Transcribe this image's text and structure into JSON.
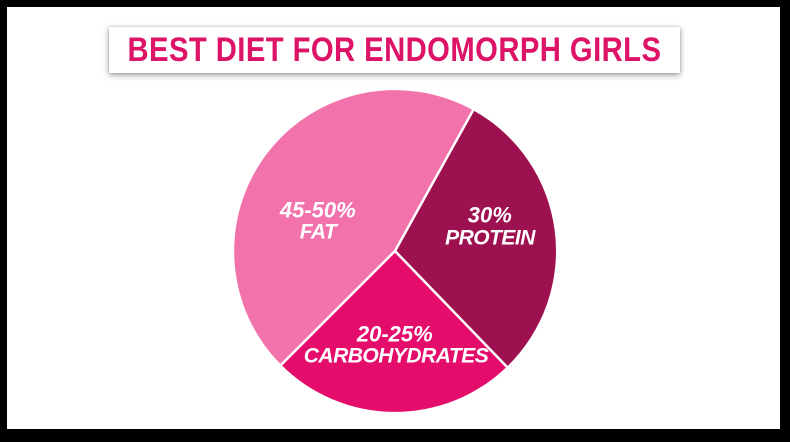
{
  "frame": {
    "background": "#ffffff",
    "border_color": "#000000"
  },
  "title": {
    "text": "BEST DIET FOR ENDOMORPH GIRLS",
    "color": "#DC1367",
    "box_background": "#ffffff"
  },
  "chart_data": {
    "type": "pie",
    "title": "BEST DIET FOR ENDOMORPH GIRLS",
    "legend_position": "none",
    "label_color": "#ffffff",
    "separator_color": "#ffffff",
    "slices": [
      {
        "name": "FAT",
        "value_label": "45-50%",
        "approx_pct": 47.5,
        "start_deg": 135,
        "sweep_deg": 164,
        "color": "#F272AC"
      },
      {
        "name": "PROTEIN",
        "value_label": "30%",
        "approx_pct": 30,
        "start_deg": 299,
        "sweep_deg": 107,
        "color": "#9E1150"
      },
      {
        "name": "CARBOHYDRATES",
        "value_label": "20-25%",
        "approx_pct": 22.5,
        "start_deg": 46,
        "sweep_deg": 89,
        "color": "#E40D6C"
      }
    ]
  }
}
